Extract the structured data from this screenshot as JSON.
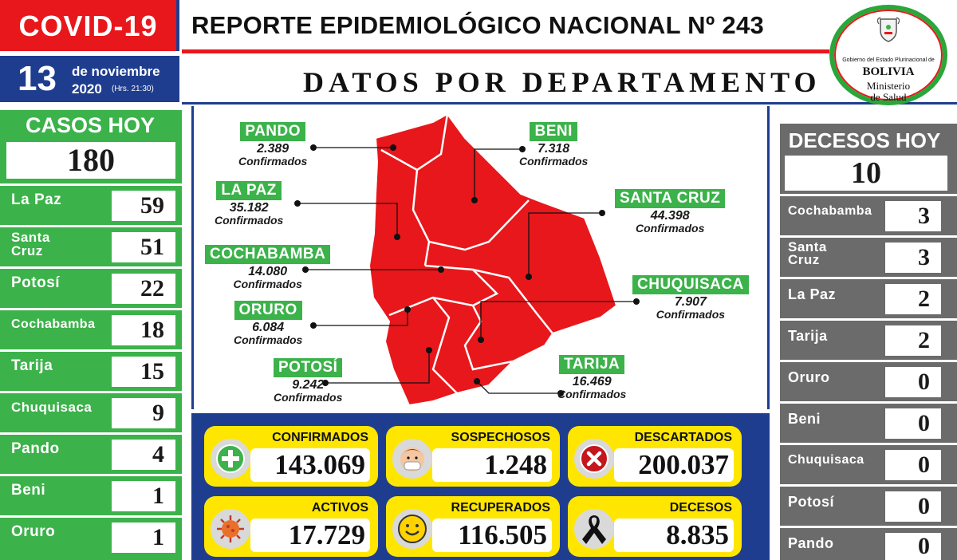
{
  "header": {
    "covid_label": "COVID-19",
    "report_title": "REPORTE EPIDEMIOLÓGICO NACIONAL Nº 243",
    "section_title": "DATOS POR DEPARTAMENTO",
    "date_day": "13",
    "date_month": "de noviembre",
    "date_year": "2020",
    "date_hours": "(Hrs. 21:30)",
    "colors": {
      "red": "#e8171b",
      "blue": "#1f3d8f",
      "green": "#3cb24a",
      "yellow": "#ffe600",
      "gray": "#6b6b6b"
    }
  },
  "logo": {
    "line1": "Gobierno del Estado Plurinacional de",
    "line2": "BOLIVIA",
    "line3": "Ministerio",
    "line4": "de Salud",
    "icon": "coat-of-arms-icon"
  },
  "casos_hoy": {
    "title": "CASOS HOY",
    "total": "180",
    "rows": [
      {
        "label": "La Paz",
        "value": "59"
      },
      {
        "label": "Santa Cruz",
        "value": "51"
      },
      {
        "label": "Potosí",
        "value": "22"
      },
      {
        "label": "Cochabamba",
        "value": "18"
      },
      {
        "label": "Tarija",
        "value": "15"
      },
      {
        "label": "Chuquisaca",
        "value": "9"
      },
      {
        "label": "Pando",
        "value": "4"
      },
      {
        "label": "Beni",
        "value": "1"
      },
      {
        "label": "Oruro",
        "value": "1"
      }
    ]
  },
  "decesos_hoy": {
    "title": "DECESOS HOY",
    "total": "10",
    "rows": [
      {
        "label": "Cochabamba",
        "value": "3"
      },
      {
        "label": "Santa Cruz",
        "value": "3"
      },
      {
        "label": "La Paz",
        "value": "2"
      },
      {
        "label": "Tarija",
        "value": "2"
      },
      {
        "label": "Oruro",
        "value": "0"
      },
      {
        "label": "Beni",
        "value": "0"
      },
      {
        "label": "Chuquisaca",
        "value": "0"
      },
      {
        "label": "Potosí",
        "value": "0"
      },
      {
        "label": "Pando",
        "value": "0"
      }
    ]
  },
  "map": {
    "confirmed_label": "Confirmados",
    "departments": [
      {
        "name": "PANDO",
        "value": "2.389"
      },
      {
        "name": "BENI",
        "value": "7.318"
      },
      {
        "name": "LA PAZ",
        "value": "35.182"
      },
      {
        "name": "SANTA CRUZ",
        "value": "44.398"
      },
      {
        "name": "COCHABAMBA",
        "value": "14.080"
      },
      {
        "name": "CHUQUISACA",
        "value": "7.907"
      },
      {
        "name": "ORURO",
        "value": "6.084"
      },
      {
        "name": "POTOSÍ",
        "value": "9.242"
      },
      {
        "name": "TARIJA",
        "value": "16.469"
      }
    ]
  },
  "stats": [
    {
      "title": "CONFIRMADOS",
      "value": "143.069",
      "icon": "plus-circle-icon"
    },
    {
      "title": "SOSPECHOSOS",
      "value": "1.248",
      "icon": "masked-face-icon"
    },
    {
      "title": "DESCARTADOS",
      "value": "200.037",
      "icon": "x-circle-icon"
    },
    {
      "title": "ACTIVOS",
      "value": "17.729",
      "icon": "virus-icon"
    },
    {
      "title": "RECUPERADOS",
      "value": "116.505",
      "icon": "smiley-face-icon"
    },
    {
      "title": "DECESOS",
      "value": "8.835",
      "icon": "mourning-ribbon-icon"
    }
  ]
}
